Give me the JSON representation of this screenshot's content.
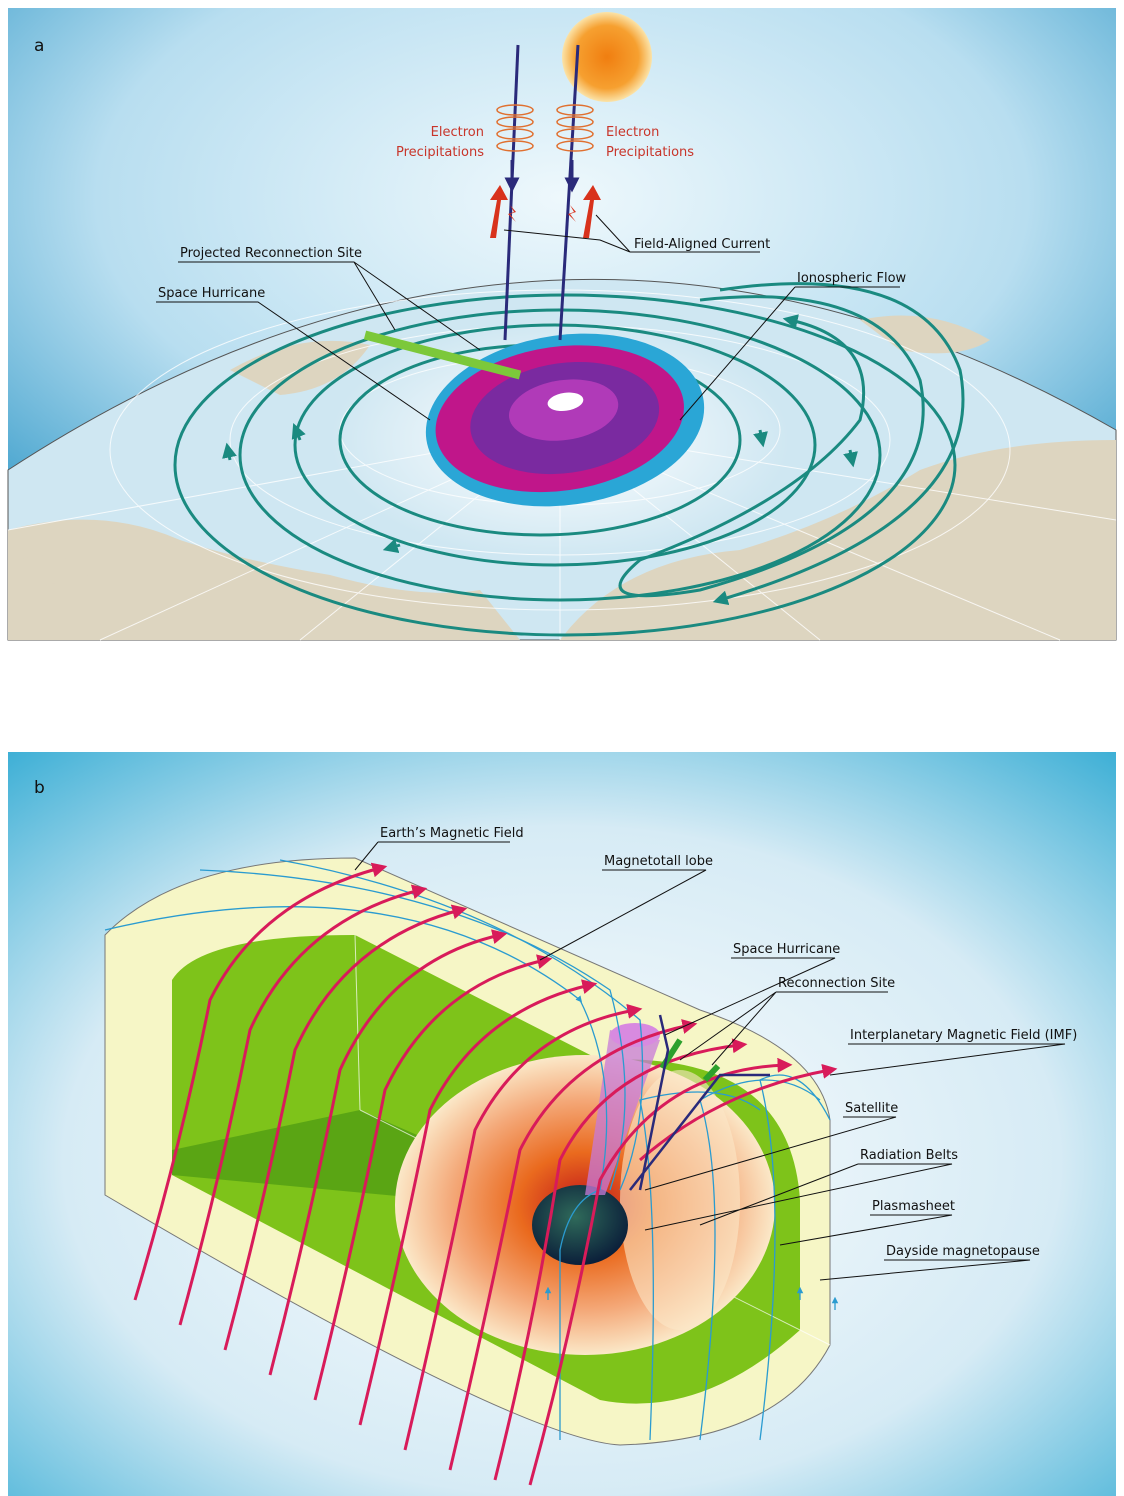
{
  "panels": [
    {
      "label": "a",
      "annotations": {
        "electron_left": [
          "Electron",
          "Precipitations"
        ],
        "electron_right": [
          "Electron",
          "Precipitations"
        ],
        "field_aligned_current": "Field-Aligned Current",
        "projected_reconnection_site": "Projected Reconnection Site",
        "space_hurricane": "Space Hurricane",
        "ionospheric_flow": "Ionospheric Flow"
      }
    },
    {
      "label": "b",
      "annotations": {
        "earths_magnetic_field": "Earth’s Magnetic Field",
        "magnetotail_lobe": "Magnetotall lobe",
        "space_hurricane": "Space Hurricane",
        "reconnection_site": "Reconnection Site",
        "imf": "Interplanetary Magnetic Field (IMF)",
        "satellite": "Satellite",
        "radiation_belts": "Radiation Belts",
        "plasmasheet": "Plasmasheet",
        "dayside_magnetopause": "Dayside magnetopause"
      }
    }
  ]
}
